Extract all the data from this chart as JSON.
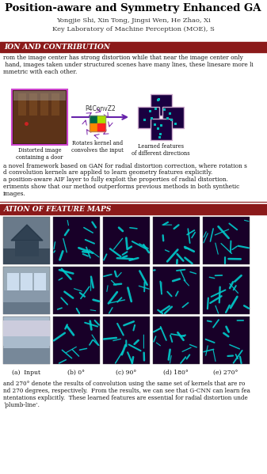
{
  "title": "Position-aware and Symmetry Enhanced GA",
  "authors": "Yongjie Shi, Xin Tong, Jingsi Wen, He Zhao, Xi",
  "affiliation": "Key Laboratory of Machine Perception (MOE), S",
  "section1_title": "ION AND CONTRIBUTION",
  "section2_title": "ATION OF FEATURE MAPS",
  "text_line1": "rom the image center has strong distortion while that near the image center only",
  "text_line2": " hand, images taken under structured scenes have many lines, these linesare more li",
  "text_line3": "mmetric with each other.",
  "arrow_label": "P4ConvZ2",
  "caption_a": "(a)  Input",
  "caption_b": "(b) 0°",
  "caption_c": "(c) 90°",
  "caption_d": "(d) 180°",
  "caption_e": "(e) 270°",
  "img_caption1": "Distorted image\ncontaining a door",
  "img_caption2": "Rotates kernel and\nconvolves the input",
  "img_caption3": "Learned features\nof different directions",
  "bullet1": "a novel framework based on GAN for radial distortion correction, where rotation s",
  "bullet2": "d convolution kernels are applied to learn geometry features explicitly.",
  "bullet3": "a position-aware AIF layer to fully exploit the properties of radial distortion.",
  "bullet4": "eriments show that our method outperforms previous methods in both synthetic",
  "bullet5": "images.",
  "footer1": "and 270° denote the results of convolution using the same set of kernels that are ro",
  "footer2": "nd 270 degrees, respectively.  From the results, we can see that G-CNN can learn fea",
  "footer3": "ntentations explicitly.  These learned features are essential for radial distortion unde",
  "footer4": "‘plumb-line’.",
  "bg_color": "#FFFFFF",
  "title_color": "#000000",
  "header_bar_color": "#8B1A1A",
  "header_text_color": "#FFFFFF",
  "body_text_color": "#111111"
}
